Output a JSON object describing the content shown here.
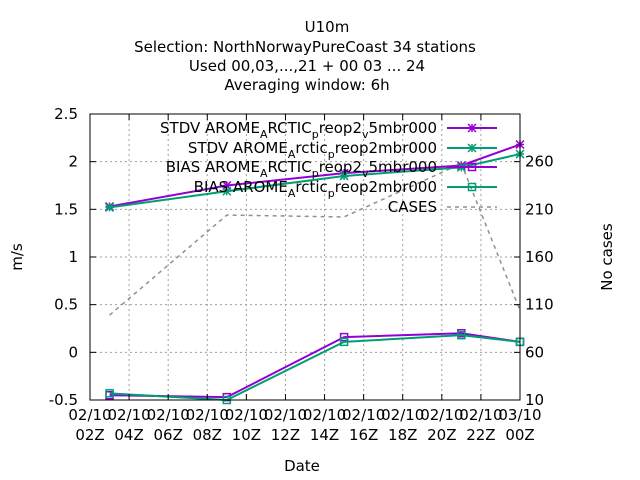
{
  "chart_data": {
    "type": "line",
    "title_lines": [
      "U10m",
      "Selection: NorthNorwayPureCoast     34 stations",
      "Used  00,03,...,21  + 00 03 ... 24",
      "Averaging window:  6h"
    ],
    "xlabel": "Date",
    "ylabel": "m/s",
    "y2label": "No cases",
    "x_ticks": [
      [
        "02/10",
        "02Z"
      ],
      [
        "02/10",
        "04Z"
      ],
      [
        "02/10",
        "06Z"
      ],
      [
        "02/10",
        "08Z"
      ],
      [
        "02/10",
        "10Z"
      ],
      [
        "02/10",
        "12Z"
      ],
      [
        "02/10",
        "14Z"
      ],
      [
        "02/10",
        "16Z"
      ],
      [
        "02/10",
        "18Z"
      ],
      [
        "02/10",
        "20Z"
      ],
      [
        "02/10",
        "22Z"
      ],
      [
        "03/10",
        "00Z"
      ]
    ],
    "xlim": [
      "02/10 02Z",
      "03/10 00Z"
    ],
    "ylim": [
      -0.5,
      2.5
    ],
    "y_ticks": [
      "-0.5",
      "0",
      "0.5",
      "1",
      "1.5",
      "2",
      "2.5"
    ],
    "y2lim": [
      10,
      310
    ],
    "y2_ticks": [
      "10",
      "60",
      "110",
      "160",
      "210",
      "260"
    ],
    "grid": true,
    "legend_position": "top-right",
    "series": [
      {
        "legend": [
          "STDV AROME",
          "A",
          "RCTIC",
          "p",
          "reop2",
          "v",
          "5mbr000"
        ],
        "color": "#9400d3",
        "marker": "x",
        "dash": false,
        "axis": "y",
        "x": [
          "02/10 03Z",
          "02/10 09Z",
          "02/10 15Z",
          "02/10 21Z",
          "03/10 00Z"
        ],
        "y": [
          1.53,
          1.75,
          1.88,
          1.96,
          2.18
        ]
      },
      {
        "legend": [
          "STDV AROME",
          "A",
          "rctic",
          "p",
          "reop2mbr000"
        ],
        "color": "#009e73",
        "marker": "x",
        "dash": false,
        "axis": "y",
        "x": [
          "02/10 03Z",
          "02/10 09Z",
          "02/10 15Z",
          "02/10 21Z",
          "03/10 00Z"
        ],
        "y": [
          1.52,
          1.69,
          1.85,
          1.94,
          2.08
        ]
      },
      {
        "legend": [
          "BIAS AROME",
          "A",
          "RCTIC",
          "p",
          "reop2",
          "v",
          "5mbr000"
        ],
        "color": "#9400d3",
        "marker": "square",
        "dash": false,
        "axis": "y",
        "x": [
          "02/10 03Z",
          "02/10 09Z",
          "02/10 15Z",
          "02/10 21Z",
          "03/10 00Z"
        ],
        "y": [
          -0.45,
          -0.47,
          0.16,
          0.2,
          0.11
        ]
      },
      {
        "legend": [
          "BIAS AROME",
          "A",
          "rctic",
          "p",
          "reop2mbr000"
        ],
        "color": "#009e73",
        "marker": "square",
        "dash": false,
        "axis": "y",
        "x": [
          "02/10 03Z",
          "02/10 09Z",
          "02/10 15Z",
          "02/10 21Z",
          "03/10 00Z"
        ],
        "y": [
          -0.43,
          -0.5,
          0.11,
          0.18,
          0.11
        ]
      },
      {
        "legend": [
          "CASES"
        ],
        "color": "#909090",
        "marker": "none",
        "dash": true,
        "axis": "y2",
        "x": [
          "02/10 03Z",
          "02/10 09Z",
          "02/10 15Z",
          "02/10 21Z",
          "03/10 00Z"
        ],
        "y": [
          99,
          204,
          202,
          258,
          104
        ]
      }
    ]
  }
}
